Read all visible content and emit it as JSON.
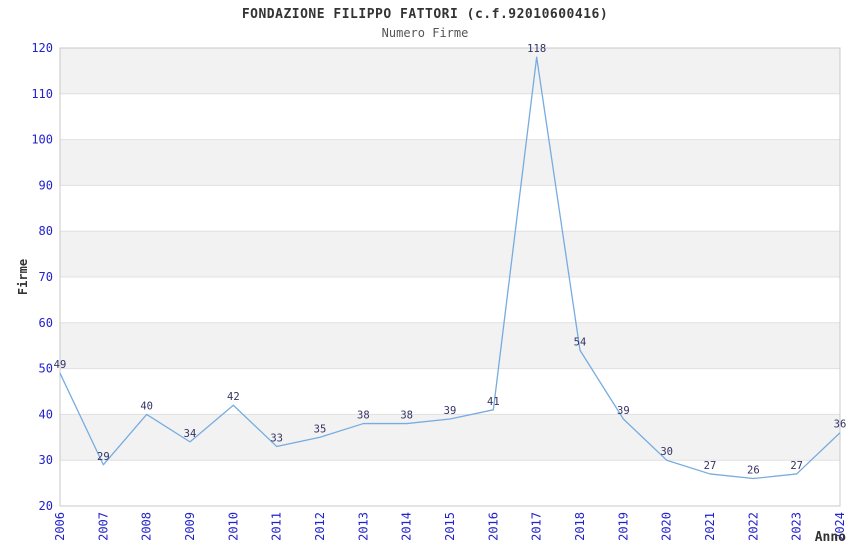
{
  "chart_data": {
    "type": "line",
    "title": "FONDAZIONE FILIPPO FATTORI (c.f.92010600416)",
    "subtitle": "Numero Firme",
    "xlabel": "Anno",
    "ylabel": "Firme",
    "categories": [
      "2006",
      "2007",
      "2008",
      "2009",
      "2010",
      "2011",
      "2012",
      "2013",
      "2014",
      "2015",
      "2016",
      "2017",
      "2018",
      "2019",
      "2020",
      "2021",
      "2022",
      "2023",
      "2024"
    ],
    "values": [
      49,
      29,
      40,
      34,
      42,
      33,
      35,
      38,
      38,
      39,
      41,
      118,
      54,
      39,
      30,
      27,
      26,
      27,
      36
    ],
    "ylim": [
      20,
      120
    ],
    "ytick_step": 10,
    "grid": true,
    "legend": "none",
    "point_labels_visible": true,
    "colors": {
      "line": "#76ace0",
      "tick_label": "#2222cc",
      "data_label": "#333366",
      "band": "#f2f2f2",
      "gridline": "#e0e0e0",
      "border": "#c8c8c8",
      "axis_label": "#333333",
      "title": "#333333",
      "subtitle": "#555555"
    }
  }
}
